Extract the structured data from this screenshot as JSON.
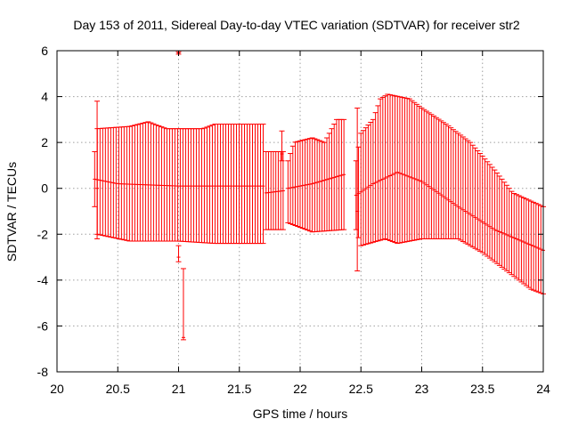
{
  "chart_data": {
    "type": "errorbar",
    "title": "Day 153 of 2011, Sidereal Day-to-day VTEC variation (SDTVAR) for receiver str2",
    "xlabel": "GPS time / hours",
    "ylabel": "SDTVAR / TECUs",
    "xlim": [
      20,
      24
    ],
    "ylim": [
      -8,
      6
    ],
    "x_ticks": [
      20,
      20.5,
      21,
      21.5,
      22,
      22.5,
      23,
      23.5,
      24
    ],
    "x_tick_labels": [
      "20",
      "20.5",
      "21",
      "21.5",
      "22",
      "22.5",
      "23",
      "23.5",
      "24"
    ],
    "y_ticks": [
      -8,
      -6,
      -4,
      -2,
      0,
      2,
      4,
      6
    ],
    "y_tick_labels": [
      "-8",
      "-6",
      "-4",
      "-2",
      "0",
      "2",
      "4",
      "6"
    ],
    "grid": true,
    "series": [
      {
        "name": "SDTVAR",
        "color": "#ff0000",
        "segments": [
          {
            "x_start": 20.31,
            "x_end": 21.7,
            "step": 0.022,
            "center_keys": [
              [
                20.31,
                0.4
              ],
              [
                20.5,
                0.2
              ],
              [
                21.0,
                0.1
              ],
              [
                21.7,
                0.1
              ]
            ],
            "upper_keys": [
              [
                20.31,
                1.6
              ],
              [
                20.33,
                2.6
              ],
              [
                20.6,
                2.7
              ],
              [
                20.75,
                2.9
              ],
              [
                20.9,
                2.6
              ],
              [
                21.0,
                2.6
              ],
              [
                21.2,
                2.6
              ],
              [
                21.3,
                2.8
              ],
              [
                21.7,
                2.8
              ]
            ],
            "lower_keys": [
              [
                20.31,
                -0.8
              ],
              [
                20.33,
                -2.0
              ],
              [
                20.6,
                -2.3
              ],
              [
                21.0,
                -2.3
              ],
              [
                21.3,
                -2.4
              ],
              [
                21.7,
                -2.4
              ]
            ]
          },
          {
            "x_start": 21.72,
            "x_end": 21.87,
            "step": 0.02,
            "center_keys": [
              [
                21.72,
                -0.2
              ],
              [
                21.87,
                -0.1
              ]
            ],
            "upper_keys": [
              [
                21.72,
                1.6
              ],
              [
                21.87,
                1.6
              ]
            ],
            "lower_keys": [
              [
                21.72,
                -1.8
              ],
              [
                21.87,
                -1.8
              ]
            ]
          },
          {
            "x_start": 21.9,
            "x_end": 22.36,
            "step": 0.02,
            "center_keys": [
              [
                21.9,
                0.0
              ],
              [
                22.1,
                0.2
              ],
              [
                22.36,
                0.6
              ]
            ],
            "upper_keys": [
              [
                21.9,
                1.2
              ],
              [
                21.95,
                2.0
              ],
              [
                22.1,
                2.2
              ],
              [
                22.2,
                2.0
              ],
              [
                22.3,
                3.0
              ],
              [
                22.36,
                3.0
              ]
            ],
            "lower_keys": [
              [
                21.9,
                -1.5
              ],
              [
                22.1,
                -1.9
              ],
              [
                22.36,
                -1.8
              ]
            ]
          },
          {
            "x_start": 22.46,
            "x_end": 24.0,
            "step": 0.02,
            "center_keys": [
              [
                22.46,
                -0.3
              ],
              [
                22.6,
                0.2
              ],
              [
                22.8,
                0.7
              ],
              [
                23.0,
                0.3
              ],
              [
                23.3,
                -0.8
              ],
              [
                23.6,
                -1.8
              ],
              [
                24.0,
                -2.7
              ]
            ],
            "upper_keys": [
              [
                22.46,
                1.2
              ],
              [
                22.5,
                2.4
              ],
              [
                22.6,
                3.0
              ],
              [
                22.66,
                3.9
              ],
              [
                22.72,
                4.1
              ],
              [
                22.9,
                3.9
              ],
              [
                23.0,
                3.5
              ],
              [
                23.2,
                2.8
              ],
              [
                23.4,
                2.0
              ],
              [
                23.6,
                0.8
              ],
              [
                23.75,
                -0.2
              ],
              [
                24.0,
                -0.8
              ]
            ],
            "lower_keys": [
              [
                22.46,
                -1.8
              ],
              [
                22.5,
                -2.5
              ],
              [
                22.7,
                -2.2
              ],
              [
                22.8,
                -2.4
              ],
              [
                23.0,
                -2.2
              ],
              [
                23.3,
                -2.2
              ],
              [
                23.5,
                -2.8
              ],
              [
                23.7,
                -3.6
              ],
              [
                23.9,
                -4.4
              ],
              [
                24.0,
                -4.6
              ]
            ]
          }
        ],
        "outliers": [
          {
            "x": 21.0,
            "y": 5.9,
            "upper": 5.95,
            "lower": 5.85
          },
          {
            "x": 21.0,
            "y": -3.0,
            "upper": -2.5,
            "lower": -3.2
          },
          {
            "x": 21.04,
            "y": -6.5,
            "upper": -3.5,
            "lower": -6.6
          },
          {
            "x": 20.33,
            "y": 0.0,
            "upper": 3.8,
            "lower": -2.2
          },
          {
            "x": 21.85,
            "y": 1.5,
            "upper": 2.5,
            "lower": 1.2
          },
          {
            "x": 22.47,
            "y": -1.0,
            "upper": 3.5,
            "lower": -3.6
          }
        ]
      }
    ]
  }
}
